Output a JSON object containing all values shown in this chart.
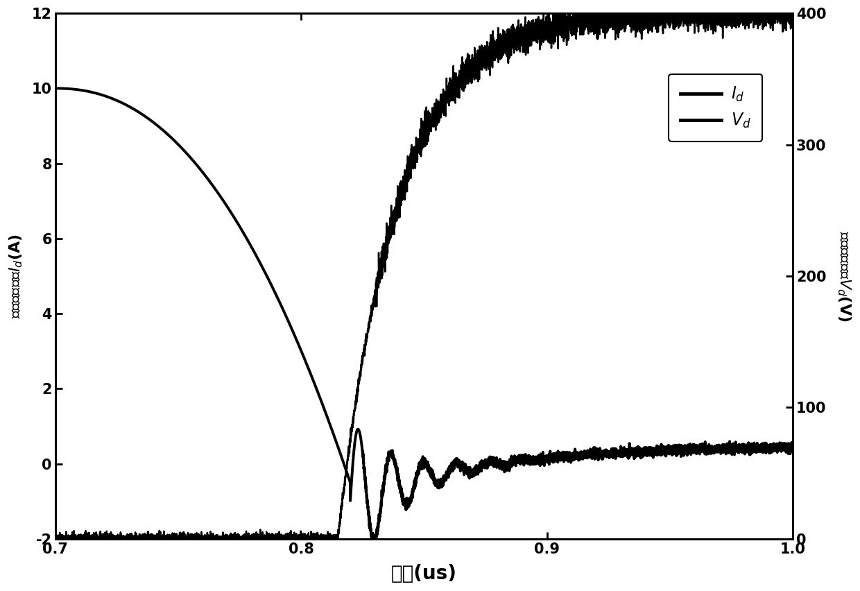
{
  "title": "",
  "xlabel": "时间(us)",
  "ylabel_left": "二极管电流，$I_d$(A)",
  "ylabel_right": "二极管电压，$V_d$(V)",
  "xlim": [
    0.7,
    1.0
  ],
  "ylim_left": [
    -2,
    12
  ],
  "ylim_right": [
    0,
    400
  ],
  "xticks": [
    0.7,
    0.8,
    0.9,
    1.0
  ],
  "yticks_left": [
    -2,
    0,
    2,
    4,
    6,
    8,
    10,
    12
  ],
  "yticks_right": [
    0,
    100,
    200,
    300,
    400
  ],
  "legend_labels": [
    "$I_d$",
    "$V_d$"
  ],
  "background_color": "#ffffff",
  "line_color": "#000000",
  "linewidth_Id": 2.8,
  "linewidth_Vd": 1.8
}
